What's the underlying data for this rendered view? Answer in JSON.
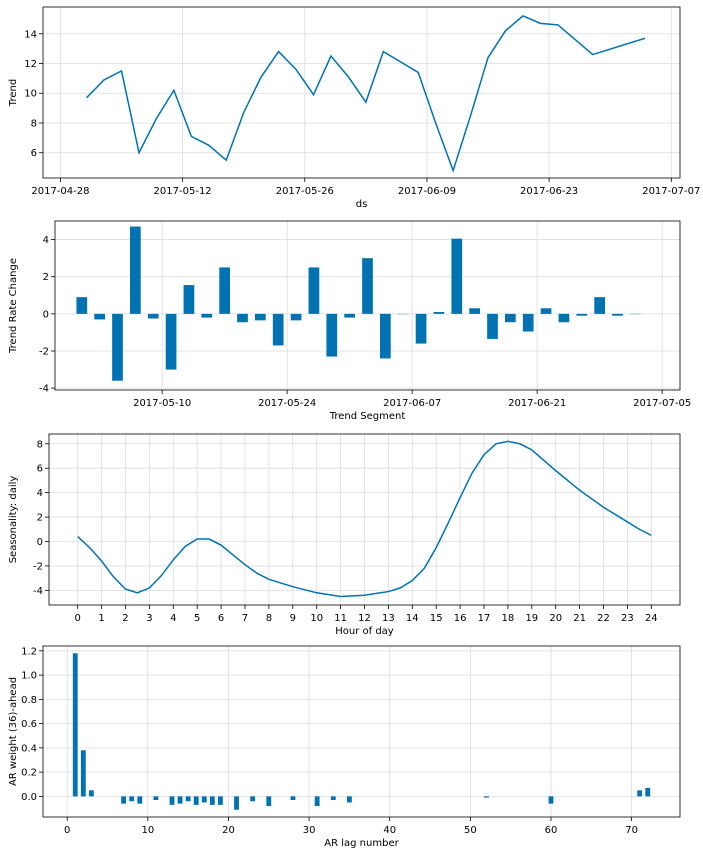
{
  "chart_data": [
    {
      "type": "line",
      "xlabel": "ds",
      "ylabel": "Trend",
      "x_is_date": true,
      "xlim": [
        "2017-04-26",
        "2017-07-08"
      ],
      "ylim": [
        4.3,
        15.8
      ],
      "xticks": [
        "2017-04-28",
        "2017-05-12",
        "2017-05-26",
        "2017-06-09",
        "2017-06-23",
        "2017-07-07"
      ],
      "yticks": [
        6,
        8,
        10,
        12,
        14
      ],
      "grid": true,
      "color": "#0072B2",
      "series": [
        {
          "x": [
            "2017-05-01",
            "2017-05-03",
            "2017-05-05",
            "2017-05-07",
            "2017-05-09",
            "2017-05-11",
            "2017-05-13",
            "2017-05-15",
            "2017-05-17",
            "2017-05-19",
            "2017-05-21",
            "2017-05-23",
            "2017-05-25",
            "2017-05-27",
            "2017-05-29",
            "2017-05-31",
            "2017-06-02",
            "2017-06-04",
            "2017-06-06",
            "2017-06-08",
            "2017-06-10",
            "2017-06-12",
            "2017-06-14",
            "2017-06-16",
            "2017-06-18",
            "2017-06-20",
            "2017-06-22",
            "2017-06-24",
            "2017-06-26",
            "2017-06-28",
            "2017-07-04"
          ],
          "y": [
            9.7,
            10.9,
            11.5,
            6.0,
            8.3,
            10.2,
            7.1,
            6.5,
            5.5,
            8.7,
            11.1,
            12.8,
            11.6,
            9.9,
            12.5,
            11.1,
            9.4,
            12.8,
            12.1,
            11.4,
            8.0,
            4.8,
            8.5,
            12.4,
            14.2,
            15.2,
            14.7,
            14.6,
            13.6,
            12.6,
            13.7
          ]
        }
      ]
    },
    {
      "type": "bar",
      "xlabel": "Trend Segment",
      "ylabel": "Trend Rate Change",
      "x_is_date": true,
      "xlim": [
        "2017-04-28",
        "2017-07-07"
      ],
      "ylim": [
        -4.1,
        5.0
      ],
      "xticks": [
        "2017-05-10",
        "2017-05-24",
        "2017-06-07",
        "2017-06-21",
        "2017-07-05"
      ],
      "yticks": [
        -4,
        -2,
        0,
        2,
        4
      ],
      "grid": true,
      "color": "#0072B2",
      "series": [
        {
          "x": [
            "2017-05-01",
            "2017-05-03",
            "2017-05-05",
            "2017-05-07",
            "2017-05-09",
            "2017-05-11",
            "2017-05-13",
            "2017-05-15",
            "2017-05-17",
            "2017-05-19",
            "2017-05-21",
            "2017-05-23",
            "2017-05-25",
            "2017-05-27",
            "2017-05-29",
            "2017-05-31",
            "2017-06-02",
            "2017-06-04",
            "2017-06-06",
            "2017-06-08",
            "2017-06-10",
            "2017-06-12",
            "2017-06-14",
            "2017-06-16",
            "2017-06-18",
            "2017-06-20",
            "2017-06-22",
            "2017-06-24",
            "2017-06-26",
            "2017-06-28",
            "2017-06-30",
            "2017-07-02"
          ],
          "y": [
            0.9,
            -0.3,
            -3.6,
            4.7,
            -0.25,
            -3.0,
            1.55,
            -0.2,
            2.5,
            -0.45,
            -0.35,
            -1.7,
            -0.35,
            2.5,
            -2.3,
            -0.2,
            3.0,
            -2.4,
            0.0,
            -1.6,
            0.1,
            4.05,
            0.3,
            -1.35,
            -0.45,
            -0.95,
            0.3,
            -0.45,
            -0.1,
            0.9,
            -0.1,
            0.0
          ]
        }
      ]
    },
    {
      "type": "line",
      "xlabel": "Hour of day",
      "ylabel": "Seasonality: daily",
      "xlim": [
        -1.2,
        25.2
      ],
      "ylim": [
        -5.2,
        8.8
      ],
      "xticks": [
        0,
        1,
        2,
        3,
        4,
        5,
        6,
        7,
        8,
        9,
        10,
        11,
        12,
        13,
        14,
        15,
        16,
        17,
        18,
        19,
        20,
        21,
        22,
        23,
        24
      ],
      "yticks": [
        -4,
        -2,
        0,
        2,
        4,
        6,
        8
      ],
      "grid": true,
      "color": "#0072B2",
      "series": [
        {
          "x": [
            0,
            0.5,
            1,
            1.5,
            2,
            2.5,
            3,
            3.5,
            4,
            4.5,
            5,
            5.5,
            6,
            6.5,
            7,
            7.5,
            8,
            9,
            10,
            11,
            12,
            13,
            13.5,
            14,
            14.5,
            15,
            15.5,
            16,
            16.5,
            17,
            17.5,
            18,
            18.5,
            19,
            20,
            21,
            22,
            23,
            23.5,
            24
          ],
          "y": [
            0.4,
            -0.5,
            -1.6,
            -2.9,
            -3.9,
            -4.2,
            -3.8,
            -2.8,
            -1.5,
            -0.4,
            0.2,
            0.2,
            -0.3,
            -1.1,
            -1.9,
            -2.6,
            -3.1,
            -3.7,
            -4.2,
            -4.5,
            -4.4,
            -4.1,
            -3.8,
            -3.2,
            -2.2,
            -0.5,
            1.5,
            3.6,
            5.6,
            7.1,
            8.0,
            8.2,
            8.0,
            7.5,
            5.8,
            4.2,
            2.8,
            1.6,
            1.0,
            0.5
          ]
        }
      ]
    },
    {
      "type": "bar",
      "xlabel": "AR lag number",
      "ylabel": "AR weight (36)-ahead",
      "xlim": [
        -3,
        76
      ],
      "ylim": [
        -0.17,
        1.24
      ],
      "xticks": [
        0,
        10,
        20,
        30,
        40,
        50,
        60,
        70
      ],
      "yticks": [
        0.0,
        0.2,
        0.4,
        0.6,
        0.8,
        1.0,
        1.2
      ],
      "grid": true,
      "color": "#0072B2",
      "series": [
        {
          "x": [
            1,
            2,
            3,
            7,
            8,
            9,
            11,
            13,
            14,
            15,
            16,
            17,
            18,
            19,
            21,
            23,
            25,
            28,
            31,
            33,
            35,
            52,
            60,
            71,
            72
          ],
          "y": [
            1.18,
            0.38,
            0.05,
            -0.06,
            -0.04,
            -0.06,
            -0.03,
            -0.07,
            -0.06,
            -0.04,
            -0.07,
            -0.05,
            -0.07,
            -0.07,
            -0.11,
            -0.04,
            -0.08,
            -0.03,
            -0.08,
            -0.03,
            -0.05,
            -0.01,
            -0.06,
            0.05,
            0.07
          ]
        }
      ]
    }
  ]
}
